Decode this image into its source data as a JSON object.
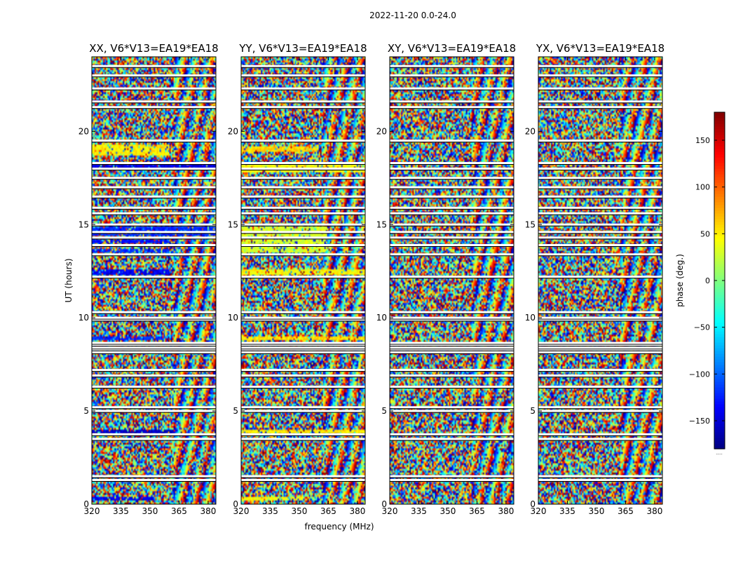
{
  "chart_data": {
    "type": "heatmap",
    "suptitle": "2022-11-20 0.0-24.0",
    "xlabel": "frequency (MHz)",
    "ylabel": "UT (hours)",
    "xlim": [
      320,
      384
    ],
    "ylim": [
      0,
      24
    ],
    "xticks": [
      320,
      335,
      350,
      365,
      380
    ],
    "yticks": [
      0,
      5,
      10,
      15,
      20
    ],
    "colorbar": {
      "label": "phase (deg.)",
      "range": [
        -180,
        180
      ],
      "ticks": [
        150,
        100,
        50,
        0,
        -50,
        -100,
        -150
      ],
      "tick_labels": [
        "150",
        "100",
        "50",
        "0",
        "−50",
        "−100",
        "−150"
      ],
      "colormap": "jet",
      "under_label": "....."
    },
    "flagged_hours": [
      1.3,
      1.5,
      3.5,
      3.75,
      5.0,
      5.2,
      6.3,
      6.9,
      7.2,
      8.15,
      8.3,
      8.4,
      8.55,
      8.65,
      9.9,
      10.0,
      10.3,
      12.2,
      13.4,
      13.9,
      14.3,
      14.6,
      15.0,
      15.6,
      15.9,
      16.5,
      17.0,
      17.5,
      18.0,
      18.3,
      19.5,
      21.3,
      21.6,
      22.3,
      23.0,
      23.5
    ],
    "panels": [
      {
        "title": "XX, V6*V13=EA19*EA18",
        "coherent_bands": [
          {
            "start": 0.2,
            "end": 0.4,
            "phase": -140,
            "max_freq": 352
          },
          {
            "start": 3.8,
            "end": 4.0,
            "phase": -155,
            "max_freq": 362
          },
          {
            "start": 8.8,
            "end": 9.0,
            "phase": -120,
            "max_freq": 358
          },
          {
            "start": 12.3,
            "end": 12.6,
            "phase": -140,
            "max_freq": 360
          },
          {
            "start": 13.5,
            "end": 13.7,
            "phase": -120,
            "max_freq": 360
          },
          {
            "start": 14.0,
            "end": 14.2,
            "phase": -130,
            "max_freq": 360
          },
          {
            "start": 14.4,
            "end": 14.9,
            "phase": -120,
            "max_freq": 384
          },
          {
            "start": 18.0,
            "end": 18.3,
            "phase": -145,
            "max_freq": 384
          },
          {
            "start": 18.7,
            "end": 19.3,
            "phase": 50,
            "max_freq": 360
          }
        ]
      },
      {
        "title": "YY, V6*V13=EA19*EA18",
        "coherent_bands": [
          {
            "start": 0.2,
            "end": 0.35,
            "phase": 45,
            "max_freq": 352
          },
          {
            "start": 3.8,
            "end": 4.0,
            "phase": 50,
            "max_freq": 384
          },
          {
            "start": 8.8,
            "end": 9.0,
            "phase": 55,
            "max_freq": 384
          },
          {
            "start": 12.3,
            "end": 12.6,
            "phase": 45,
            "max_freq": 384
          },
          {
            "start": 13.5,
            "end": 14.9,
            "phase": 30,
            "max_freq": 364
          },
          {
            "start": 17.8,
            "end": 18.3,
            "phase": 45,
            "max_freq": 384
          },
          {
            "start": 18.9,
            "end": 19.2,
            "phase": 60,
            "max_freq": 360
          }
        ]
      },
      {
        "title": "XY, V6*V13=EA19*EA18",
        "coherent_bands": []
      },
      {
        "title": "YX, V6*V13=EA19*EA18",
        "coherent_bands": []
      }
    ]
  }
}
